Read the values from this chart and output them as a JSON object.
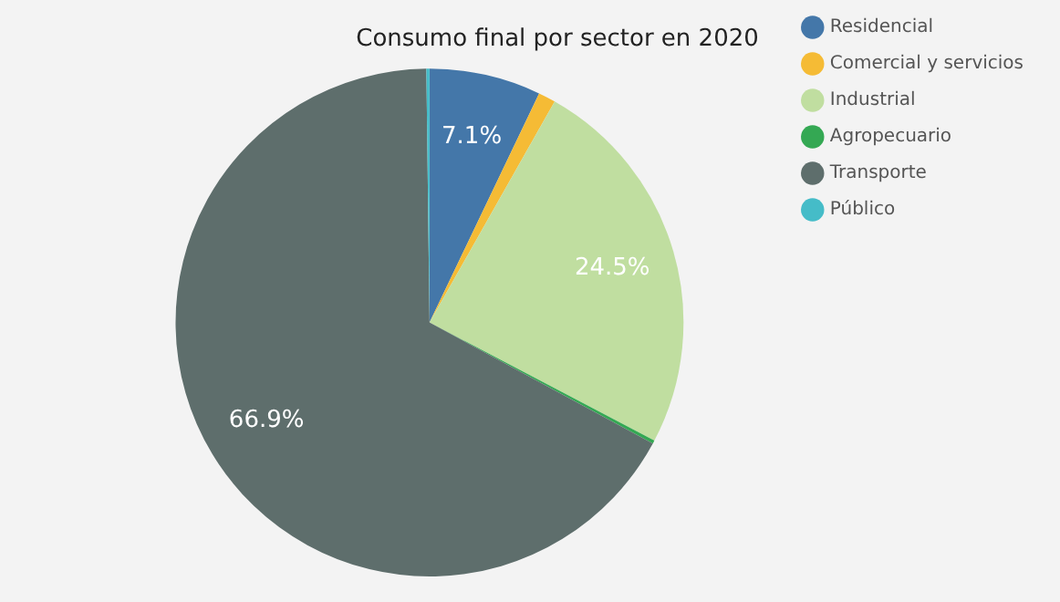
{
  "chart_data": {
    "type": "pie",
    "title": "Consumo final por sector en 2020",
    "categories": [
      "Residencial",
      "Comercial y servicios",
      "Industrial",
      "Agropecuario",
      "Transporte",
      "Público"
    ],
    "values": [
      7.1,
      1.1,
      24.5,
      0.2,
      66.9,
      0.2
    ],
    "colors": [
      "#4477a9",
      "#f5bb35",
      "#c0dea0",
      "#34a853",
      "#5e6e6c",
      "#45bcc8"
    ],
    "value_labels": [
      "7.1%",
      null,
      "24.5%",
      null,
      "66.9%",
      null
    ],
    "legend": "right"
  }
}
